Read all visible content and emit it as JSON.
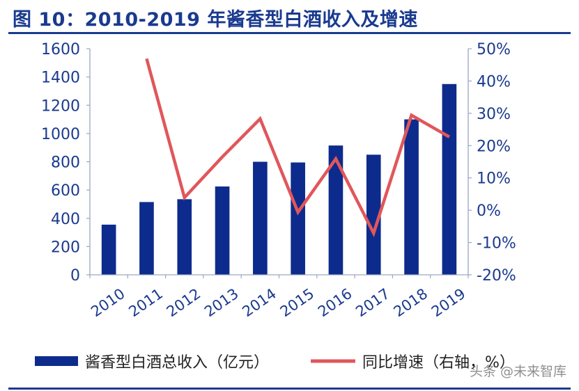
{
  "header": {
    "title": "图 10：2010-2019 年酱香型白酒收入及增速"
  },
  "watermark": "头条 @未来智库",
  "colors": {
    "bar": "#0d2b8c",
    "line": "#e0575b",
    "axis_text": "#1a3a8f",
    "axis_line": "#9aa6c4",
    "title": "#1a3a8f"
  },
  "chart_data": {
    "type": "bar",
    "categories": [
      "2010",
      "2011",
      "2012",
      "2013",
      "2014",
      "2015",
      "2016",
      "2017",
      "2018",
      "2019"
    ],
    "series": [
      {
        "name": "酱香型白酒总收入（亿元）",
        "type": "bar",
        "axis": "left",
        "values": [
          355,
          515,
          535,
          625,
          800,
          795,
          915,
          850,
          1100,
          1350
        ]
      },
      {
        "name": "同比增速（右轴，%）",
        "type": "line",
        "axis": "right",
        "values": [
          null,
          46.9,
          3.9,
          16.5,
          28.3,
          -0.6,
          15.9,
          -7.1,
          29.4,
          22.7
        ]
      }
    ],
    "y_left": {
      "ylim": [
        0,
        1600
      ],
      "ticks": [
        0,
        200,
        400,
        600,
        800,
        1000,
        1200,
        1400,
        1600
      ]
    },
    "y_right": {
      "ylim": [
        -20,
        50
      ],
      "ticks": [
        -20,
        -10,
        0,
        10,
        20,
        30,
        40,
        50
      ],
      "tick_labels": [
        "-20%",
        "-10%",
        "0%",
        "10%",
        "20%",
        "30%",
        "40%",
        "50%"
      ]
    },
    "legend": {
      "position": "bottom"
    },
    "grid": false
  }
}
